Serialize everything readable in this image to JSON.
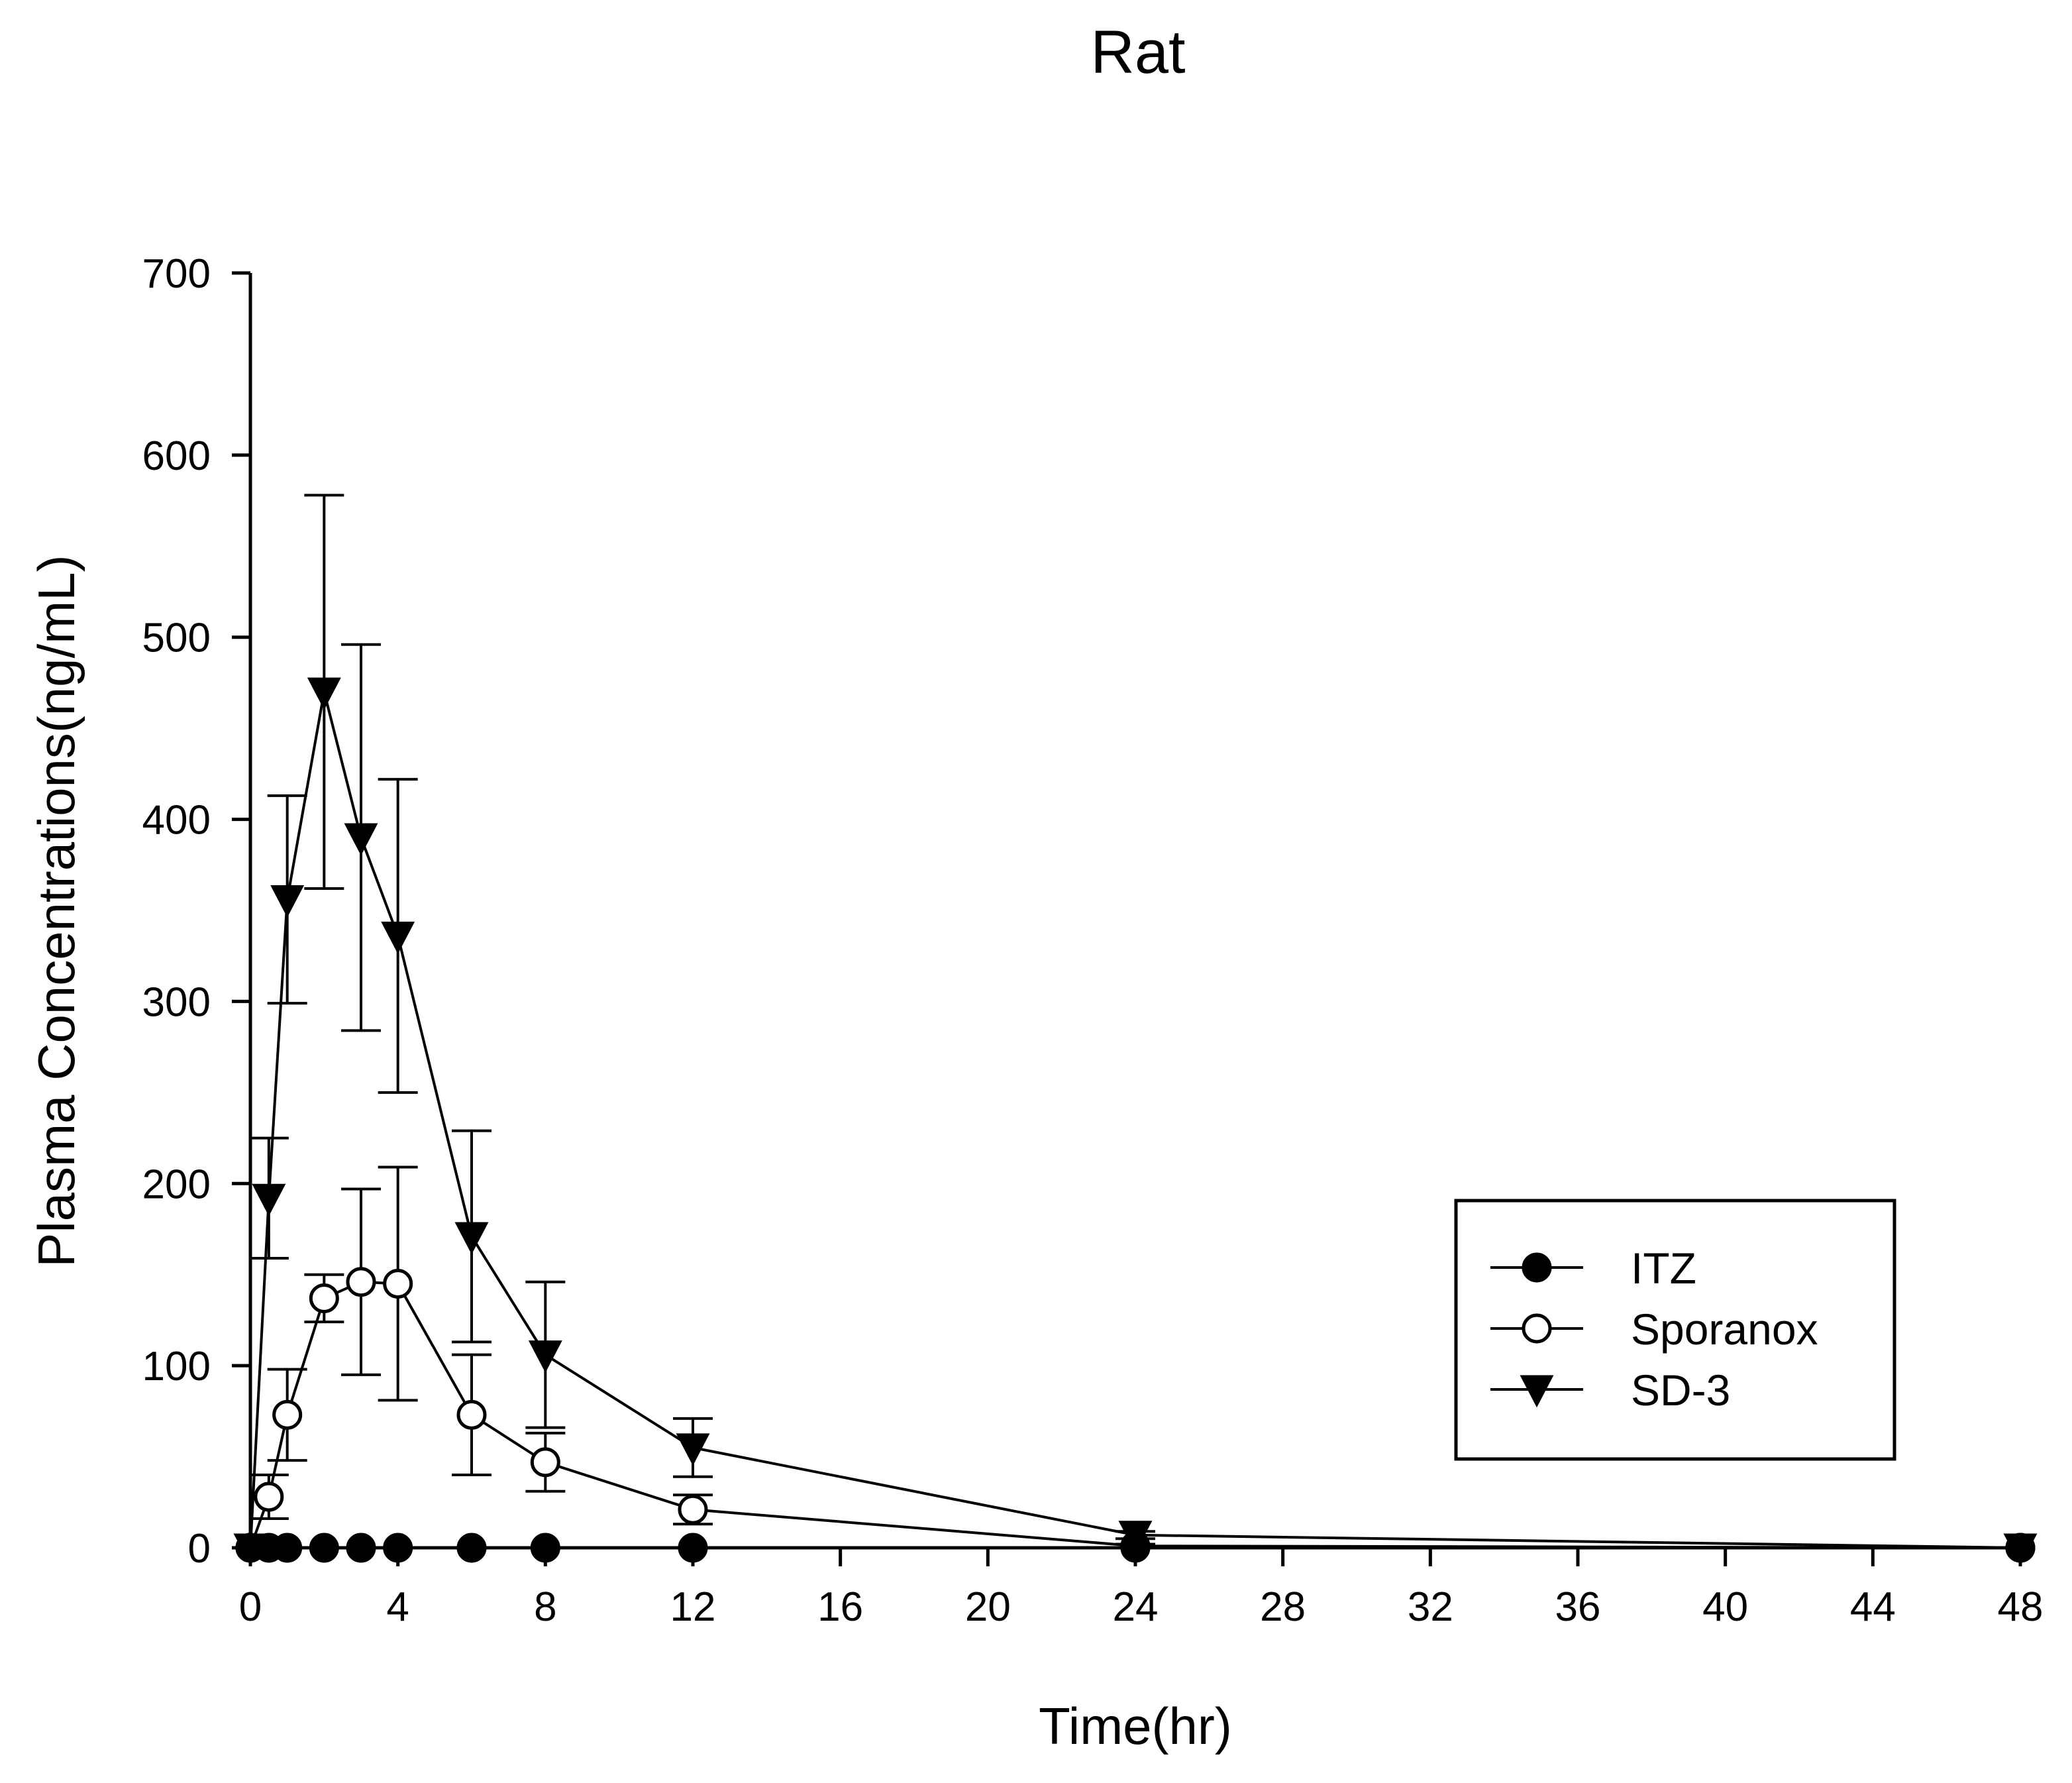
{
  "chart_data": {
    "type": "line",
    "title": "Rat",
    "xlabel": "Time(hr)",
    "ylabel": "Plasma Concentrations(ng/mL)",
    "xlim": [
      0,
      48
    ],
    "ylim": [
      0,
      700
    ],
    "xticks": [
      0,
      4,
      8,
      12,
      16,
      20,
      24,
      28,
      32,
      36,
      40,
      44,
      48
    ],
    "yticks": [
      0,
      100,
      200,
      300,
      400,
      500,
      600,
      700
    ],
    "grid": false,
    "legend_position": "right",
    "series": [
      {
        "name": "ITZ",
        "marker": "filled-circle",
        "x": [
          0,
          0.5,
          1,
          2,
          3,
          4,
          6,
          8,
          12,
          24,
          48
        ],
        "y": [
          0,
          0,
          0,
          0,
          0,
          0,
          0,
          0,
          0,
          0,
          0
        ],
        "err": [
          0,
          0,
          0,
          0,
          0,
          0,
          0,
          0,
          0,
          0,
          0
        ]
      },
      {
        "name": "Sporanox",
        "marker": "open-circle",
        "x": [
          0,
          0.5,
          1,
          2,
          3,
          4,
          6,
          8,
          12,
          24,
          48
        ],
        "y": [
          0,
          28,
          73,
          137,
          146,
          145,
          73,
          47,
          21,
          1,
          0
        ],
        "err": [
          0,
          12,
          25,
          13,
          51,
          64,
          33,
          16,
          8,
          1,
          0
        ]
      },
      {
        "name": "SD-3",
        "marker": "filled-triangle-down",
        "x": [
          0,
          0.5,
          1,
          2,
          3,
          4,
          6,
          8,
          12,
          24,
          48
        ],
        "y": [
          0,
          192,
          356,
          470,
          390,
          336,
          171,
          106,
          55,
          7,
          0
        ],
        "err": [
          0,
          33,
          57,
          108,
          106,
          86,
          58,
          40,
          16,
          2,
          0
        ]
      }
    ]
  }
}
